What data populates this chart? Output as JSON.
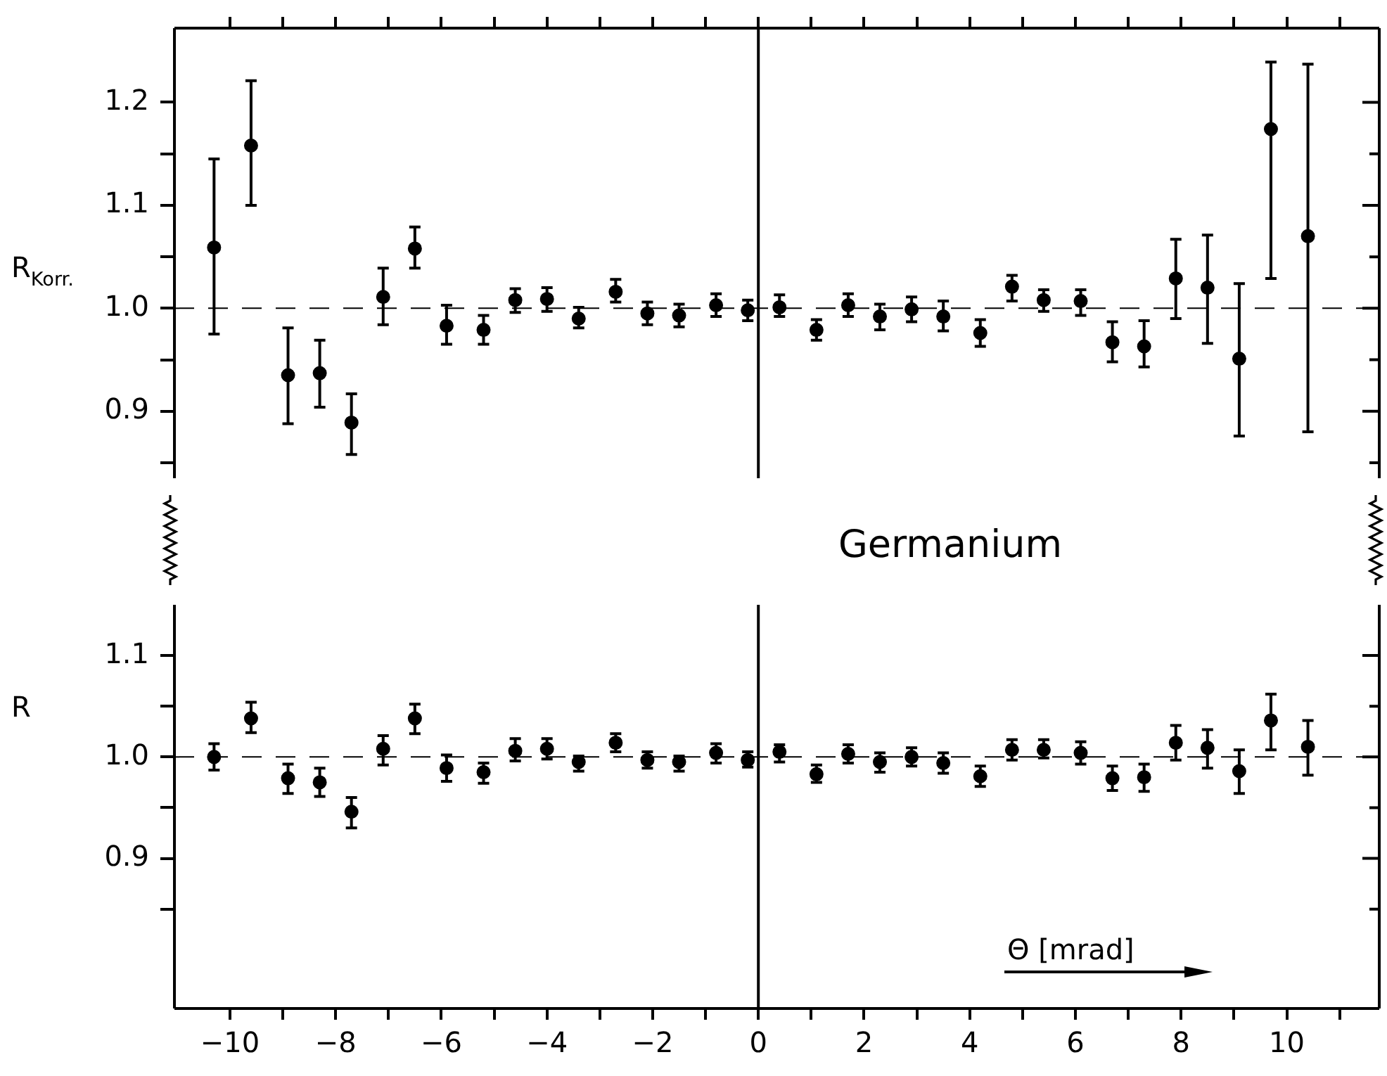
{
  "chart_data": [
    {
      "type": "scatter",
      "ylabel": "R$_{Korr.}$",
      "annotations": [
        "Germanium"
      ],
      "marker": "circle",
      "tick_labels": "y",
      "grid": false,
      "legend": false,
      "xlim": [
        -11.05,
        11.75
      ],
      "xticks": [
        {
          "value": -10,
          "label": null
        },
        {
          "value": -9,
          "label": null
        },
        {
          "value": -8,
          "label": null
        },
        {
          "value": -7,
          "label": null
        },
        {
          "value": -6,
          "label": null
        },
        {
          "value": -5,
          "label": null
        },
        {
          "value": -4,
          "label": null
        },
        {
          "value": -3,
          "label": null
        },
        {
          "value": -2,
          "label": null
        },
        {
          "value": -1,
          "label": null
        },
        {
          "value": 0,
          "label": null
        },
        {
          "value": 1,
          "label": null
        },
        {
          "value": 2,
          "label": null
        },
        {
          "value": 3,
          "label": null
        },
        {
          "value": 4,
          "label": null
        },
        {
          "value": 5,
          "label": null
        },
        {
          "value": 6,
          "label": null
        },
        {
          "value": 7,
          "label": null
        },
        {
          "value": 8,
          "label": null
        },
        {
          "value": 9,
          "label": null
        },
        {
          "value": 10,
          "label": null
        },
        {
          "value": 11,
          "label": null
        }
      ],
      "ylim": [
        0.835,
        1.272
      ],
      "yticks": [
        {
          "value": 0.85,
          "label": null
        },
        {
          "value": 0.9,
          "label": "0.9"
        },
        {
          "value": 0.95,
          "label": null
        },
        {
          "value": 1,
          "label": "1.0"
        },
        {
          "value": 1.05,
          "label": null
        },
        {
          "value": 1.1,
          "label": "1.1"
        },
        {
          "value": 1.15,
          "label": null
        },
        {
          "value": 1.2,
          "label": "1.2"
        }
      ],
      "ref_lines": [
        {
          "axis": "y",
          "value": 1,
          "line_style": "dashed"
        },
        {
          "axis": "x",
          "value": 0,
          "line_style": "solid"
        }
      ],
      "series": [
        {
          "color": "#000000",
          "x": [
            -10.3,
            -9.6,
            -8.9,
            -8.3,
            -7.7,
            -7.1,
            -6.5,
            -5.9,
            -5.2,
            -4.6,
            -4.0,
            -3.4,
            -2.7,
            -2.1,
            -1.5,
            -0.8,
            -0.2,
            0.4,
            1.1,
            1.7,
            2.3,
            2.9,
            3.5,
            4.2,
            4.8,
            5.4,
            6.1,
            6.7,
            7.3,
            7.9,
            8.5,
            9.1,
            9.7,
            10.4
          ],
          "values": [
            1.059,
            1.158,
            0.935,
            0.937,
            0.889,
            1.011,
            1.058,
            0.983,
            0.979,
            1.008,
            1.009,
            0.99,
            1.016,
            0.995,
            0.993,
            1.003,
            0.998,
            1.001,
            0.979,
            1.003,
            0.992,
            0.999,
            0.992,
            0.976,
            1.021,
            1.008,
            1.007,
            0.967,
            0.963,
            1.029,
            1.02,
            0.951,
            1.174,
            1.07
          ],
          "errors": [
            [
              0.975,
              1.145
            ],
            [
              1.1,
              1.221
            ],
            [
              0.888,
              0.981
            ],
            [
              0.904,
              0.969
            ],
            [
              0.858,
              0.917
            ],
            [
              0.984,
              1.039
            ],
            [
              1.039,
              1.079
            ],
            [
              0.965,
              1.003
            ],
            [
              0.965,
              0.993
            ],
            [
              0.996,
              1.019
            ],
            [
              0.997,
              1.02
            ],
            [
              0.981,
              1.001
            ],
            [
              1.006,
              1.028
            ],
            [
              0.984,
              1.006
            ],
            [
              0.982,
              1.004
            ],
            [
              0.992,
              1.014
            ],
            [
              0.988,
              1.008
            ],
            [
              0.992,
              1.013
            ],
            [
              0.969,
              0.989
            ],
            [
              0.992,
              1.014
            ],
            [
              0.979,
              1.004
            ],
            [
              0.987,
              1.011
            ],
            [
              0.978,
              1.007
            ],
            [
              0.963,
              0.989
            ],
            [
              1.007,
              1.032
            ],
            [
              0.997,
              1.018
            ],
            [
              0.993,
              1.018
            ],
            [
              0.948,
              0.987
            ],
            [
              0.943,
              0.988
            ],
            [
              0.99,
              1.067
            ],
            [
              0.966,
              1.071
            ],
            [
              0.876,
              1.024
            ],
            [
              1.029,
              1.239
            ],
            [
              0.88,
              1.237
            ]
          ]
        }
      ]
    },
    {
      "type": "scatter",
      "ylabel": "R",
      "xlabel": "Θ [mrad]",
      "marker": "circle",
      "grid": false,
      "legend": false,
      "xlim": [
        -11.05,
        11.75
      ],
      "xticks": [
        -10,
        {
          "value": -9,
          "label": null
        },
        -8,
        {
          "value": -7,
          "label": null
        },
        -6,
        {
          "value": -5,
          "label": null
        },
        -4,
        {
          "value": -3,
          "label": null
        },
        -2,
        {
          "value": -1,
          "label": null
        },
        0,
        {
          "value": 1,
          "label": null
        },
        2,
        {
          "value": 3,
          "label": null
        },
        4,
        {
          "value": 5,
          "label": null
        },
        6,
        {
          "value": 7,
          "label": null
        },
        8,
        {
          "value": 9,
          "label": null
        },
        10,
        {
          "value": 11,
          "label": null
        }
      ],
      "ylim": [
        0.752,
        1.15
      ],
      "yticks": [
        {
          "value": 0.85,
          "label": null
        },
        {
          "value": 0.9,
          "label": "0.9"
        },
        {
          "value": 0.95,
          "label": null
        },
        {
          "value": 1,
          "label": "1.0"
        },
        {
          "value": 1.05,
          "label": null
        },
        {
          "value": 1.1,
          "label": "1.1"
        }
      ],
      "ref_lines": [
        {
          "axis": "y",
          "value": 1,
          "line_style": "dashed"
        },
        {
          "axis": "x",
          "value": 0,
          "line_style": "solid"
        }
      ],
      "series": [
        {
          "color": "#000000",
          "x": [
            -10.3,
            -9.6,
            -8.9,
            -8.3,
            -7.7,
            -7.1,
            -6.5,
            -5.9,
            -5.2,
            -4.6,
            -4.0,
            -3.4,
            -2.7,
            -2.1,
            -1.5,
            -0.8,
            -0.2,
            0.4,
            1.1,
            1.7,
            2.3,
            2.9,
            3.5,
            4.2,
            4.8,
            5.4,
            6.1,
            6.7,
            7.3,
            7.9,
            8.5,
            9.1,
            9.7,
            10.4
          ],
          "values": [
            1.0,
            1.038,
            0.979,
            0.975,
            0.946,
            1.008,
            1.038,
            0.989,
            0.985,
            1.006,
            1.008,
            0.995,
            1.014,
            0.997,
            0.995,
            1.004,
            0.997,
            1.005,
            0.983,
            1.003,
            0.995,
            1.0,
            0.994,
            0.981,
            1.007,
            1.007,
            1.004,
            0.979,
            0.98,
            1.014,
            1.009,
            0.986,
            1.036,
            1.01
          ],
          "errors": [
            [
              0.987,
              1.013
            ],
            [
              1.024,
              1.054
            ],
            [
              0.964,
              0.993
            ],
            [
              0.961,
              0.989
            ],
            [
              0.93,
              0.96
            ],
            [
              0.992,
              1.021
            ],
            [
              1.023,
              1.052
            ],
            [
              0.976,
              1.002
            ],
            [
              0.974,
              0.994
            ],
            [
              0.996,
              1.018
            ],
            [
              0.998,
              1.018
            ],
            [
              0.986,
              1.001
            ],
            [
              1.005,
              1.023
            ],
            [
              0.989,
              1.005
            ],
            [
              0.986,
              1.001
            ],
            [
              0.994,
              1.013
            ],
            [
              0.99,
              1.005
            ],
            [
              0.995,
              1.012
            ],
            [
              0.975,
              0.992
            ],
            [
              0.994,
              1.012
            ],
            [
              0.985,
              1.004
            ],
            [
              0.991,
              1.009
            ],
            [
              0.984,
              1.004
            ],
            [
              0.971,
              0.991
            ],
            [
              0.997,
              1.017
            ],
            [
              0.999,
              1.017
            ],
            [
              0.993,
              1.015
            ],
            [
              0.967,
              0.991
            ],
            [
              0.966,
              0.993
            ],
            [
              0.997,
              1.031
            ],
            [
              0.989,
              1.027
            ],
            [
              0.964,
              1.007
            ],
            [
              1.007,
              1.062
            ],
            [
              0.982,
              1.036
            ]
          ]
        }
      ]
    }
  ]
}
